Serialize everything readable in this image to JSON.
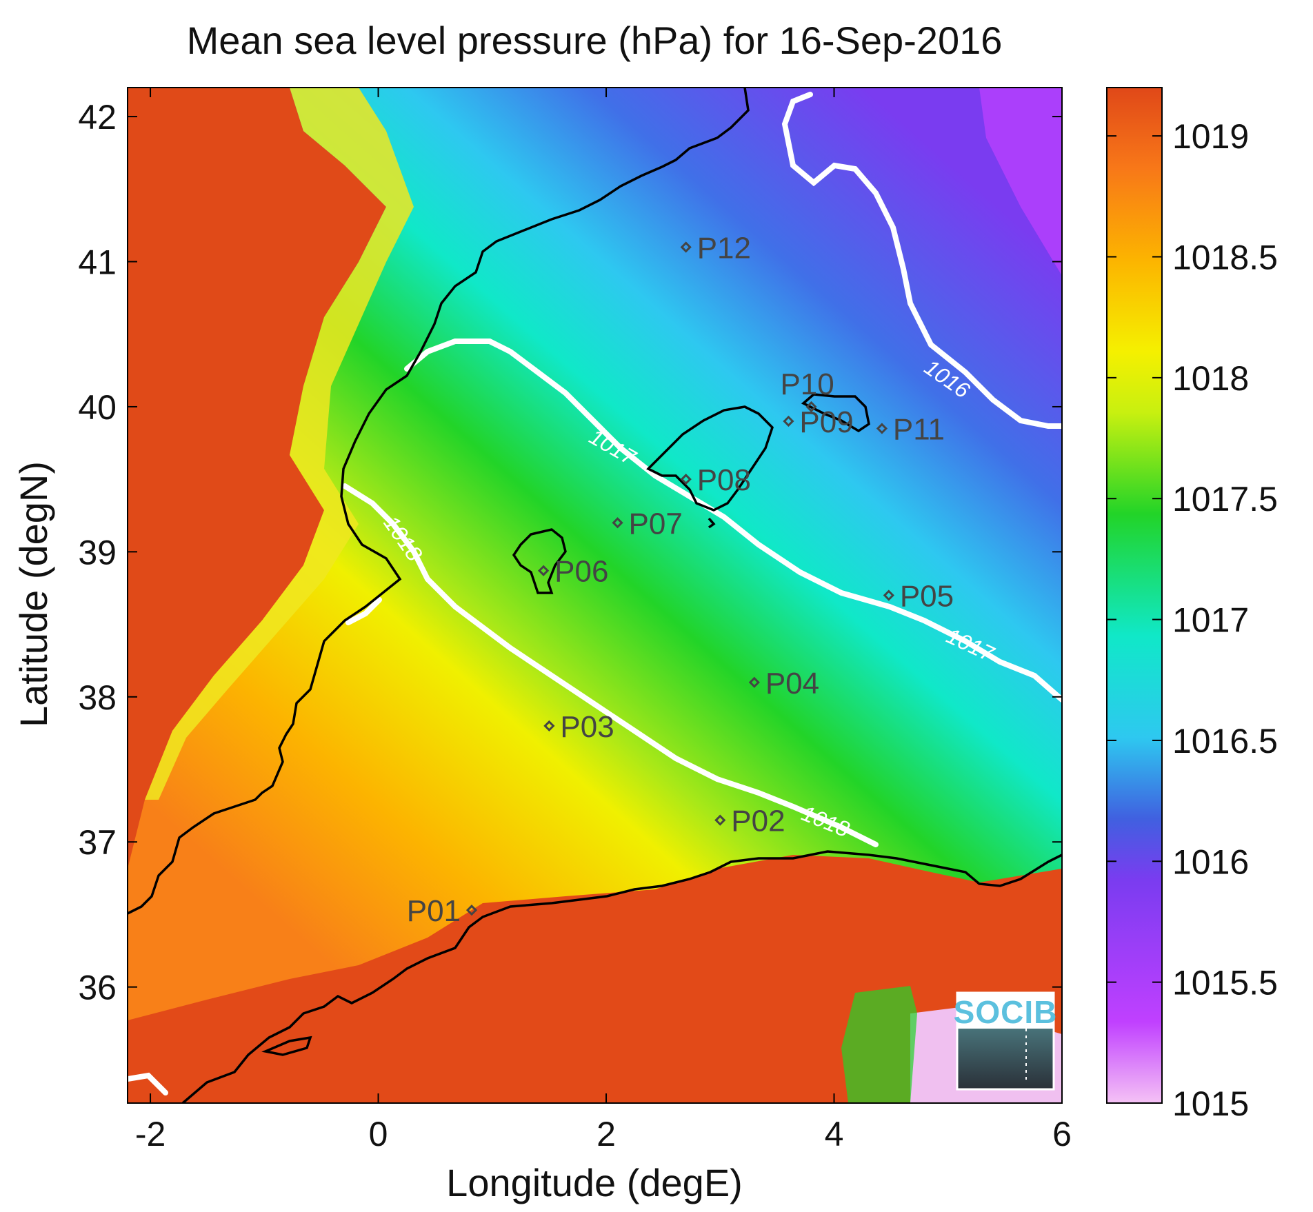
{
  "title": "Mean sea level pressure (hPa) for 16-Sep-2016",
  "x_axis": {
    "label": "Longitude (degE)",
    "ticks": [
      "-2",
      "0",
      "2",
      "4",
      "6"
    ]
  },
  "y_axis": {
    "label": "Latitude (degN)",
    "ticks": [
      "42",
      "41",
      "40",
      "39",
      "38",
      "37",
      "36"
    ]
  },
  "colorbar": {
    "ticks": [
      "1019",
      "1018.5",
      "1018",
      "1017.5",
      "1017",
      "1016.5",
      "1016",
      "1015.5",
      "1015"
    ],
    "range": [
      1015,
      1019.2
    ],
    "colors": [
      "#f5c2f5",
      "#c040ff",
      "#7a3cf0",
      "#4060e0",
      "#2ec8f0",
      "#10e8c8",
      "#22d428",
      "#c8f010",
      "#f5f000",
      "#fcb400",
      "#f87818",
      "#e04818"
    ]
  },
  "map": {
    "lon_range": [
      -2.2,
      6
    ],
    "lat_range": [
      35.2,
      42.2
    ],
    "contour_levels": [
      "1016",
      "1017",
      "1018"
    ],
    "contour_labels": [
      {
        "text": "1016"
      },
      {
        "text": "1017"
      },
      {
        "text": "1017"
      },
      {
        "text": "1018"
      },
      {
        "text": "1018"
      }
    ],
    "stations": [
      {
        "id": "P01",
        "lon": 0.82,
        "lat": 36.53
      },
      {
        "id": "P02",
        "lon": 3.0,
        "lat": 37.15
      },
      {
        "id": "P03",
        "lon": 1.5,
        "lat": 37.8
      },
      {
        "id": "P04",
        "lon": 3.3,
        "lat": 38.1
      },
      {
        "id": "P05",
        "lon": 4.48,
        "lat": 38.7
      },
      {
        "id": "P06",
        "lon": 1.45,
        "lat": 38.87
      },
      {
        "id": "P07",
        "lon": 2.1,
        "lat": 39.2
      },
      {
        "id": "P08",
        "lon": 2.7,
        "lat": 39.5
      },
      {
        "id": "P09",
        "lon": 3.6,
        "lat": 39.9
      },
      {
        "id": "P10",
        "lon": 3.8,
        "lat": 40.0
      },
      {
        "id": "P11",
        "lon": 4.42,
        "lat": 39.85
      },
      {
        "id": "P12",
        "lon": 2.7,
        "lat": 41.1
      }
    ]
  },
  "logo": {
    "text": "SOCIB"
  }
}
